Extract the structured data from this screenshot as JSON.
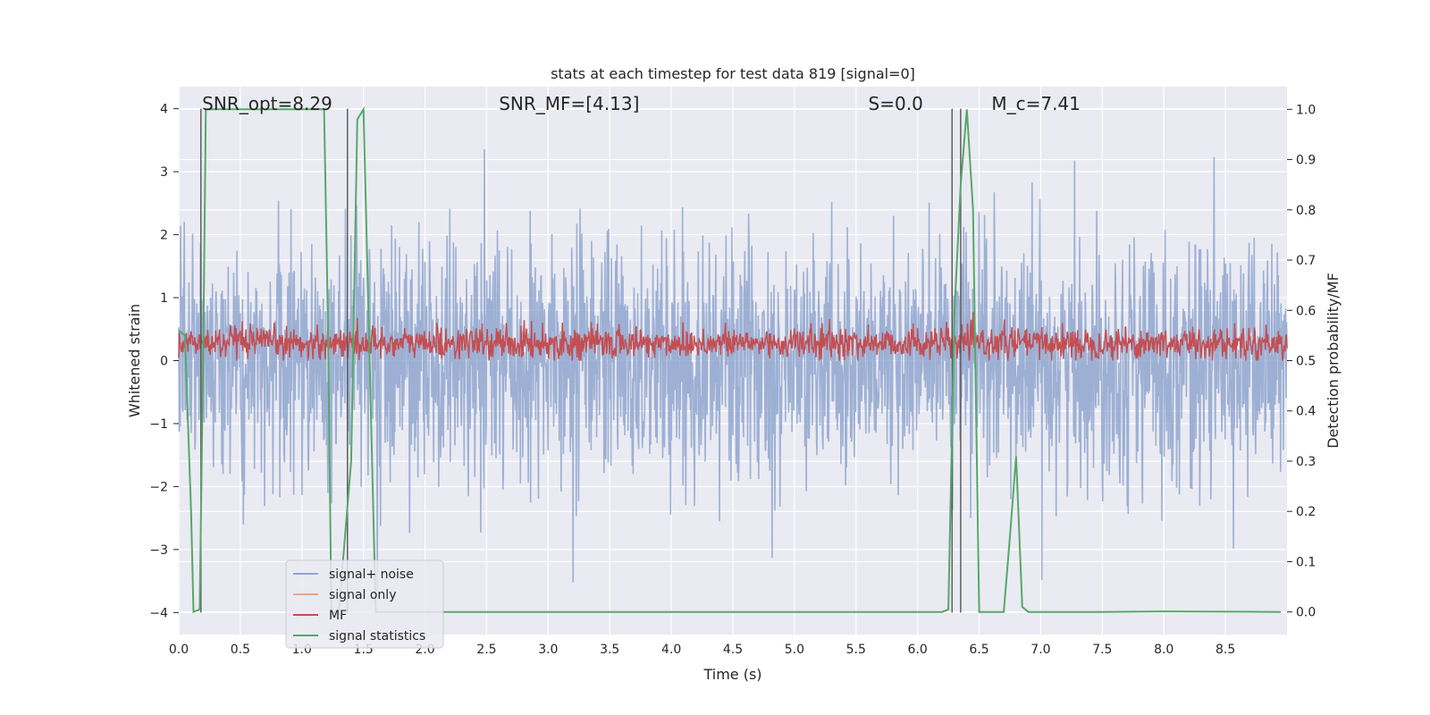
{
  "chart_data": {
    "type": "line",
    "title": "stats at each timestep for test data 819 [signal=0]",
    "xlabel": "Time (s)",
    "ylabel_left": "Whitened strain",
    "ylabel_right": "Detection probability/MF",
    "xlim": [
      0.0,
      9.0
    ],
    "ylim_left": [
      -4.35,
      4.35
    ],
    "ylim_right": [
      -0.045,
      1.045
    ],
    "x_ticks": [
      "0.0",
      "0.5",
      "1.0",
      "1.5",
      "2.0",
      "2.5",
      "3.0",
      "3.5",
      "4.0",
      "4.5",
      "5.0",
      "5.5",
      "6.0",
      "6.5",
      "7.0",
      "7.5",
      "8.0",
      "8.5"
    ],
    "y_ticks_left": [
      "4",
      "3",
      "2",
      "1",
      "0",
      "−1",
      "−2",
      "−3",
      "−4"
    ],
    "y_ticks_right": [
      "1.0",
      "0.9",
      "0.8",
      "0.7",
      "0.6",
      "0.5",
      "0.4",
      "0.3",
      "0.2",
      "0.1",
      "0.0"
    ],
    "grid": true,
    "annotations": [
      {
        "id": "snr-opt",
        "text": "SNR_opt=8.29",
        "x": 0.19
      },
      {
        "id": "snr-mf",
        "text": "SNR_MF=[4.13]",
        "x": 2.6
      },
      {
        "id": "s-value",
        "text": "S=0.0",
        "x": 5.6
      },
      {
        "id": "mc-value",
        "text": "M_c=7.41",
        "x": 6.6
      }
    ],
    "vertical_lines_x": [
      0.18,
      1.37,
      6.28,
      6.35
    ],
    "series": [
      {
        "name": "signal+ noise",
        "color": "#8fa6cf",
        "axis": "left",
        "description": "whitened strain noise, amplitude ~±2.5 with peaks to ±3.9"
      },
      {
        "name": "signal only",
        "color": "#e8a68a",
        "axis": "left",
        "values": []
      },
      {
        "name": "MF",
        "color": "#c44e52",
        "axis": "right",
        "range": [
          0.5,
          0.6
        ]
      },
      {
        "name": "signal statistics",
        "color": "#55a868",
        "axis": "right",
        "x": [
          0.0,
          0.05,
          0.1,
          0.12,
          0.17,
          0.2,
          0.22,
          0.26,
          1.15,
          1.18,
          1.21,
          1.24,
          1.3,
          1.4,
          1.45,
          1.5,
          1.55,
          1.6,
          1.8,
          6.2,
          6.25,
          6.3,
          6.35,
          6.4,
          6.45,
          6.5,
          6.55,
          6.6,
          6.7,
          6.75,
          6.8,
          6.85,
          6.9,
          7.5,
          8.0,
          8.95
        ],
        "values": [
          0.56,
          0.55,
          0.2,
          0.0,
          0.005,
          0.55,
          1.0,
          1.0,
          1.0,
          1.0,
          0.6,
          0.0,
          0.0,
          0.3,
          0.98,
          1.0,
          0.5,
          0.0,
          0.0,
          0.0,
          0.005,
          0.6,
          0.85,
          1.0,
          0.8,
          0.0,
          0.0,
          0.0,
          0.0,
          0.15,
          0.31,
          0.01,
          0.0,
          0.0,
          0.001,
          0.0
        ]
      }
    ],
    "legend": {
      "placement": "lower-left",
      "entries": [
        {
          "label": "signal+ noise",
          "color": "#8fa6cf"
        },
        {
          "label": "signal only",
          "color": "#e8a68a"
        },
        {
          "label": "MF",
          "color": "#c44e52"
        },
        {
          "label": "signal statistics",
          "color": "#55a868"
        }
      ]
    }
  }
}
